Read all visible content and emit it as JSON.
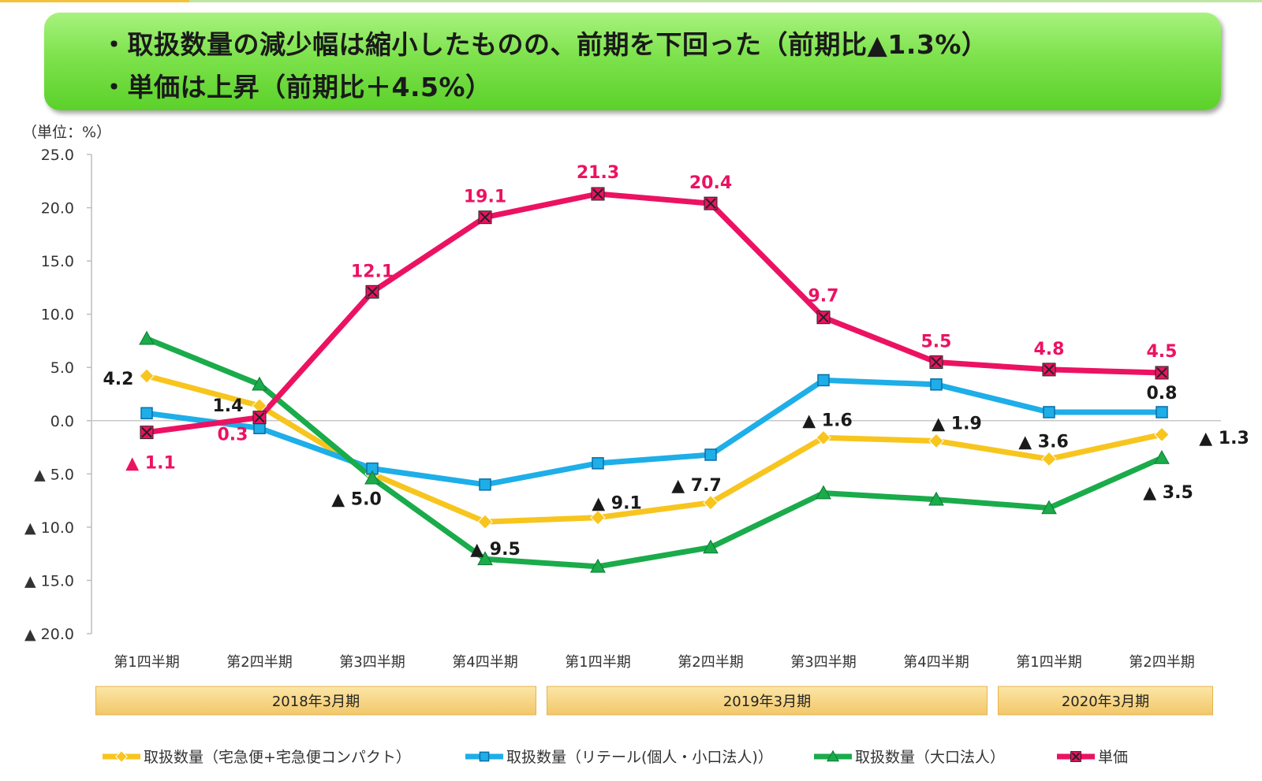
{
  "header": {
    "line1": "・取扱数量の減少幅は縮小したものの、前期を下回った（前期比▲1.3%）",
    "line2": "・単価は上昇（前期比＋4.5%）"
  },
  "chart_data": {
    "type": "line",
    "unit_label": "（単位：%）",
    "ylim": [
      -20,
      25
    ],
    "yticks": [
      25,
      20,
      15,
      10,
      5,
      0,
      -5,
      -10,
      -15,
      -20
    ],
    "ytick_labels": [
      "25.0",
      "20.0",
      "15.0",
      "10.0",
      "5.0",
      "0.0",
      "▲ 5.0",
      "▲ 10.0",
      "▲ 15.0",
      "▲ 20.0"
    ],
    "categories": [
      "第1四半期",
      "第2四半期",
      "第3四半期",
      "第4四半期",
      "第1四半期",
      "第2四半期",
      "第3四半期",
      "第4四半期",
      "第1四半期",
      "第2四半期"
    ],
    "periods": [
      {
        "label": "2018年3月期",
        "start": 0,
        "end": 3
      },
      {
        "label": "2019年3月期",
        "start": 4,
        "end": 7
      },
      {
        "label": "2020年3月期",
        "start": 8,
        "end": 9
      }
    ],
    "series": [
      {
        "name": "取扱数量（宅急便+宅急便コンパクト）",
        "color": "#f7c51e",
        "marker": "diamond",
        "values": [
          4.2,
          1.4,
          -5.0,
          -9.5,
          -9.1,
          -7.7,
          -1.6,
          -1.9,
          -3.6,
          -1.3
        ],
        "labels": [
          "4.2",
          "1.4",
          "▲ 5.0",
          "▲ 9.5",
          "▲ 9.1",
          "▲ 7.7",
          "▲ 1.6",
          "▲ 1.9",
          "▲ 3.6",
          "▲ 1.3"
        ],
        "label_color": "#1a1a1a"
      },
      {
        "name": "取扱数量（リテール(個人・小口法人)）",
        "color": "#1eaee8",
        "marker": "square",
        "values": [
          0.7,
          -0.7,
          -4.5,
          -6.0,
          -4.0,
          -3.2,
          3.8,
          3.4,
          0.8,
          0.8
        ],
        "labels": [
          "",
          "",
          "",
          "",
          "",
          "",
          "",
          "",
          "",
          "0.8"
        ],
        "label_color": "#1a1a1a"
      },
      {
        "name": "取扱数量（大口法人）",
        "color": "#1aab4b",
        "marker": "triangle",
        "values": [
          7.7,
          3.4,
          -5.4,
          -13.0,
          -13.7,
          -11.9,
          -6.8,
          -7.4,
          -8.2,
          -3.5
        ],
        "labels": [
          "",
          "",
          "",
          "",
          "",
          "",
          "",
          "",
          "",
          "▲ 3.5"
        ],
        "label_color": "#1a1a1a"
      },
      {
        "name": "単価",
        "color": "#ec1262",
        "marker": "x-square",
        "values": [
          -1.1,
          0.3,
          12.1,
          19.1,
          21.3,
          20.4,
          9.7,
          5.5,
          4.8,
          4.5
        ],
        "labels": [
          "▲ 1.1",
          "0.3",
          "12.1",
          "19.1",
          "21.3",
          "20.4",
          "9.7",
          "5.5",
          "4.8",
          "4.5"
        ],
        "label_color": "#ec1262"
      }
    ]
  }
}
